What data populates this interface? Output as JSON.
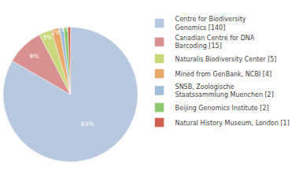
{
  "chart_data": {
    "type": "pie",
    "categories": [
      "Centre for Biodiversity\nGenomics [140]",
      "Canadian Centre for DNA\nBarcoding [15]",
      "Naturalis Biodiversity Center [5]",
      "Mined from GenBank, NCBI [4]",
      "SNSB, Zoologische\nStaatssammlung Muenchen [2]",
      "Beijing Genomics Institute [2]",
      "Natural History Museum, London [1]"
    ],
    "values": [
      83,
      9,
      3,
      2,
      1,
      1,
      0.6
    ],
    "value_labels": [
      "83%",
      "9%",
      "3%",
      "2%",
      "1%",
      "1%",
      null
    ],
    "colors": [
      "#b8c9df",
      "#d99090",
      "#c8d87a",
      "#e8a86a",
      "#a0bcd8",
      "#8dc870",
      "#d06050"
    ],
    "data_labels": true,
    "legend": "right"
  }
}
